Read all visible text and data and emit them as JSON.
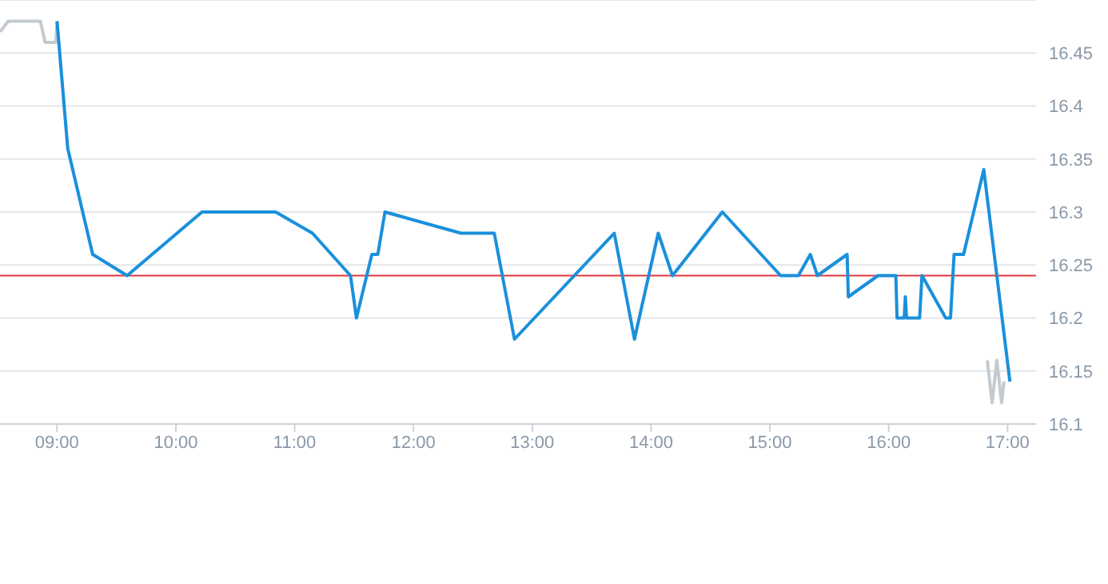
{
  "chart_data": {
    "type": "line",
    "xlim": [
      8.52,
      17.24
    ],
    "ylim": [
      16.1,
      16.5
    ],
    "xticks": [
      {
        "value": 9,
        "label": "09:00"
      },
      {
        "value": 10,
        "label": "10:00"
      },
      {
        "value": 11,
        "label": "11:00"
      },
      {
        "value": 12,
        "label": "12:00"
      },
      {
        "value": 13,
        "label": "13:00"
      },
      {
        "value": 14,
        "label": "14:00"
      },
      {
        "value": 15,
        "label": "15:00"
      },
      {
        "value": 16,
        "label": "16:00"
      },
      {
        "value": 17,
        "label": "17:00"
      }
    ],
    "yticks": [
      16.1,
      16.15,
      16.2,
      16.25,
      16.3,
      16.35,
      16.4,
      16.45
    ],
    "grid": "y",
    "marker": "none",
    "line_style": "solid",
    "ref_lines": [
      {
        "axis": "y",
        "value": 16.24,
        "color": "#e0393e"
      }
    ],
    "series": [
      {
        "color": "#c3cbd1",
        "x": [
          8.52,
          8.59,
          8.86,
          8.9,
          8.99,
          9.0
        ],
        "values": [
          16.47,
          16.48,
          16.48,
          16.46,
          16.46,
          16.48
        ]
      },
      {
        "color": "#1a90db",
        "x": [
          9.0,
          9.09,
          9.3,
          9.59,
          10.22,
          10.84,
          11.15,
          11.47,
          11.52,
          11.65,
          11.7,
          11.76,
          12.4,
          12.68,
          12.85,
          13.69,
          13.86,
          14.06,
          14.18,
          14.6,
          15.09,
          15.24,
          15.34,
          15.4,
          15.65,
          15.66,
          15.91,
          16.06,
          16.07,
          16.13,
          16.14,
          16.15,
          16.26,
          16.28,
          16.48,
          16.52,
          16.55,
          16.63,
          16.8,
          17.02
        ],
        "values": [
          16.48,
          16.36,
          16.26,
          16.24,
          16.3,
          16.3,
          16.28,
          16.24,
          16.2,
          16.26,
          16.26,
          16.3,
          16.28,
          16.28,
          16.18,
          16.28,
          16.18,
          16.28,
          16.24,
          16.3,
          16.24,
          16.24,
          16.26,
          16.24,
          16.26,
          16.22,
          16.24,
          16.24,
          16.2,
          16.2,
          16.22,
          16.2,
          16.2,
          16.24,
          16.2,
          16.2,
          16.26,
          16.26,
          16.34,
          16.14
        ]
      },
      {
        "color": "#c3cbd1",
        "x": [
          16.83,
          16.87,
          16.91,
          16.95,
          16.97
        ],
        "values": [
          16.16,
          16.12,
          16.16,
          16.12,
          16.14
        ]
      }
    ]
  }
}
